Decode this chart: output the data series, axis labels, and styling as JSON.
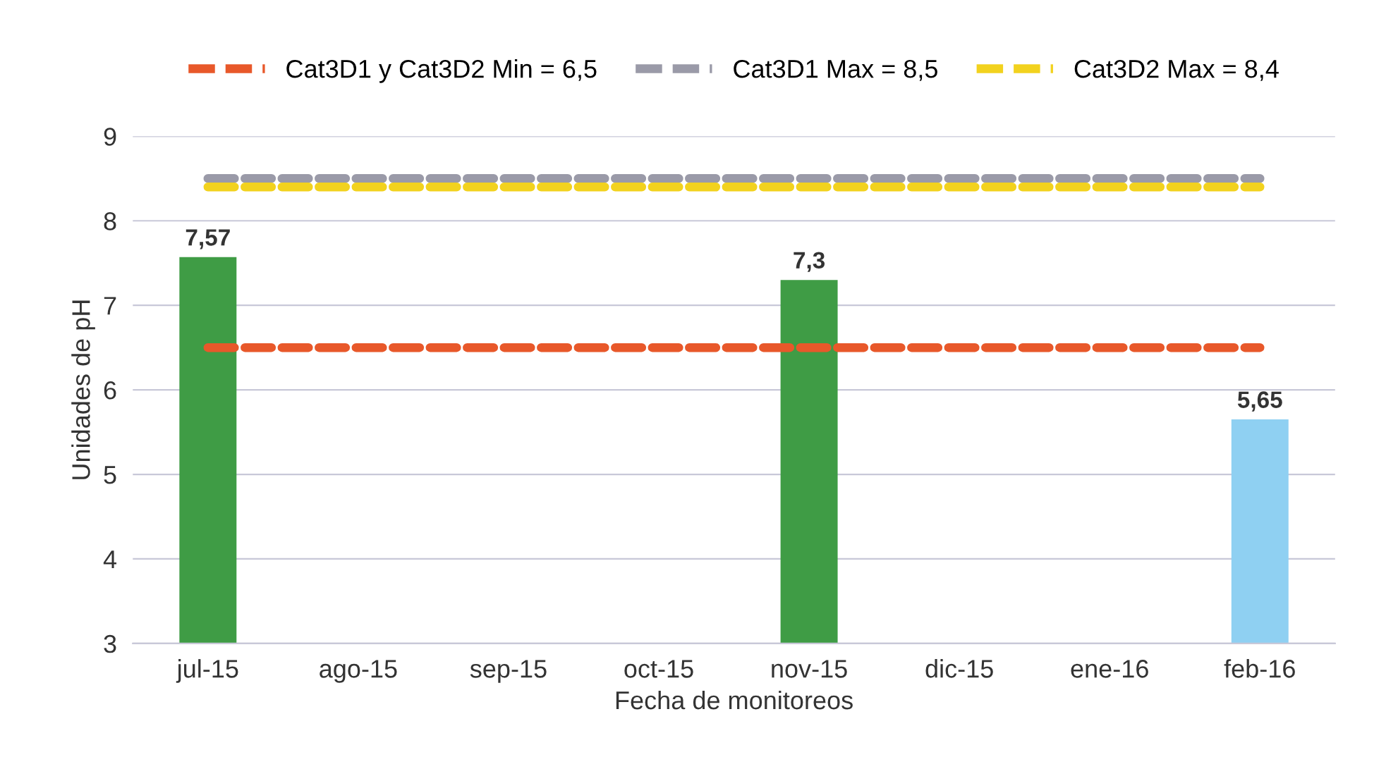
{
  "chart_data": {
    "type": "bar",
    "xlabel": "Fecha de monitoreos",
    "ylabel": "Unidades de pH",
    "categories": [
      "jul-15",
      "ago-15",
      "sep-15",
      "oct-15",
      "nov-15",
      "dic-15",
      "ene-16",
      "feb-16"
    ],
    "series": [
      {
        "values": [
          7.57,
          null,
          null,
          null,
          7.3,
          null,
          null,
          5.65
        ],
        "colors": [
          "#3f9c45",
          null,
          null,
          null,
          "#3f9c45",
          null,
          null,
          "#8fd0f2"
        ],
        "value_labels": [
          "7,57",
          null,
          null,
          null,
          "7,3",
          null,
          null,
          "5,65"
        ]
      },
      {
        "type": "line",
        "name": "Cat3D1 y Cat3D2 Min = 6,5",
        "color": "#e8582a",
        "values": [
          6.5,
          6.5,
          6.5,
          6.5,
          6.5,
          6.5,
          6.5,
          6.5
        ],
        "line_style": "dashed"
      },
      {
        "type": "line",
        "name": "Cat3D1 Max = 8,5",
        "color": "#9a9aa8",
        "values": [
          8.5,
          8.5,
          8.5,
          8.5,
          8.5,
          8.5,
          8.5,
          8.5
        ],
        "line_style": "dashed"
      },
      {
        "type": "line",
        "name": "Cat3D2 Max = 8,4",
        "color": "#f2d21e",
        "values": [
          8.4,
          8.4,
          8.4,
          8.4,
          8.4,
          8.4,
          8.4,
          8.4
        ],
        "line_style": "dashed"
      }
    ],
    "ylim": [
      3,
      9
    ],
    "yticks": [
      3,
      4,
      5,
      6,
      7,
      8,
      9
    ],
    "grid": "y",
    "legend": "top",
    "marker": "none"
  }
}
